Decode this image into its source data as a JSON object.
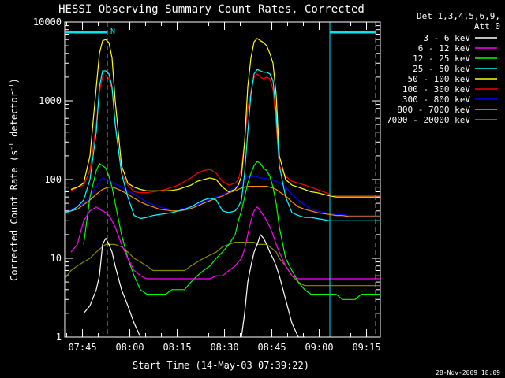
{
  "chart_data": {
    "type": "line",
    "title": "HESSI Observing Summary Count Rates, Corrected",
    "xlabel": "Start Time (14-May-03 07:39:22)",
    "ylabel_main": "Corrected Count Rate (s",
    "ylabel_sup1": "-1",
    "ylabel_mid": " detector",
    "ylabel_sup2": "-1",
    "ylabel_end": ")",
    "yscale": "log",
    "ylim": [
      1,
      10000
    ],
    "xlim_minutes": [
      0,
      100
    ],
    "x_ticks": [
      {
        "minute": 5.63,
        "label": "07:45"
      },
      {
        "minute": 20.63,
        "label": "08:00"
      },
      {
        "minute": 35.63,
        "label": "08:15"
      },
      {
        "minute": 50.63,
        "label": "08:30"
      },
      {
        "minute": 65.63,
        "label": "08:45"
      },
      {
        "minute": 80.63,
        "label": "09:00"
      },
      {
        "minute": 95.63,
        "label": "09:15"
      }
    ],
    "y_ticks": [
      {
        "value": 1,
        "label": "1"
      },
      {
        "value": 10,
        "label": "10"
      },
      {
        "value": 100,
        "label": "100"
      },
      {
        "value": 1000,
        "label": "1000"
      },
      {
        "value": 10000,
        "label": "10000"
      }
    ],
    "legend_header_1": "Det 1,3,4,5,6,9,",
    "legend_header_2": "Att 0",
    "legend_position": "top-right",
    "annotations": {
      "night_marker": "N",
      "night_bar_color": "#00e5ee",
      "night_bars": [
        [
          0,
          13.5
        ],
        [
          84,
          98.5
        ]
      ],
      "vertical_lines_dashed": [
        13.5,
        98.5
      ],
      "vertical_lines_solid": [
        0.3,
        84
      ]
    },
    "footer_timestamp": "28-Nov-2009 18:09",
    "x_minutes": [
      0,
      2,
      4,
      6,
      8,
      10,
      11,
      12,
      13,
      14,
      15,
      16,
      18,
      20,
      22,
      24,
      26,
      28,
      30,
      32,
      34,
      36,
      38,
      40,
      42,
      44,
      46,
      48,
      50,
      52,
      54,
      55,
      56,
      57,
      58,
      59,
      60,
      61,
      62,
      63,
      64,
      65,
      66,
      67,
      68,
      70,
      72,
      74,
      76,
      78,
      80,
      82,
      84,
      86,
      88,
      90,
      92,
      94,
      96,
      98,
      100
    ],
    "series": [
      {
        "name": "3 - 6 keV",
        "color": "#ffffff",
        "values": [
          null,
          null,
          null,
          2,
          2.5,
          4,
          6,
          15,
          18,
          15,
          12,
          8,
          4,
          2.5,
          1.5,
          1,
          null,
          null,
          null,
          null,
          null,
          null,
          null,
          null,
          null,
          null,
          null,
          null,
          null,
          null,
          null,
          null,
          1,
          2,
          5,
          8,
          12,
          15,
          20,
          18,
          15,
          12,
          10,
          8,
          6,
          3,
          1.5,
          1,
          1,
          null,
          null,
          null,
          null,
          null,
          null,
          null,
          null,
          null,
          null,
          null,
          null
        ]
      },
      {
        "name": "6 - 12 keV",
        "color": "#ff00ff",
        "values": [
          null,
          12,
          15,
          30,
          40,
          45,
          42,
          40,
          38,
          35,
          30,
          25,
          15,
          10,
          7,
          6,
          5.5,
          5.5,
          5.5,
          5.5,
          5.5,
          5.5,
          5.5,
          5.5,
          5.5,
          5.5,
          5.5,
          6,
          6,
          7,
          8,
          9,
          10,
          13,
          20,
          30,
          40,
          45,
          40,
          35,
          30,
          25,
          20,
          15,
          12,
          8,
          6,
          5.5,
          5.5,
          5.5,
          5.5,
          5.5,
          5.5,
          5.5,
          5.5,
          5.5,
          5.5,
          5.5,
          5.5,
          5.5,
          5.5
        ]
      },
      {
        "name": "12 - 25 keV",
        "color": "#00ff00",
        "values": [
          null,
          null,
          null,
          15,
          60,
          130,
          160,
          150,
          140,
          110,
          80,
          50,
          20,
          10,
          6,
          4,
          3.5,
          3.5,
          3.5,
          3.5,
          4,
          4,
          4,
          5,
          6,
          7,
          8,
          10,
          12,
          15,
          20,
          30,
          40,
          60,
          90,
          120,
          150,
          170,
          160,
          140,
          130,
          110,
          80,
          50,
          25,
          10,
          7,
          5,
          4,
          3.5,
          3.5,
          3.5,
          3.5,
          3.5,
          3,
          3,
          3,
          3.5,
          3.5,
          3.5,
          3.5
        ]
      },
      {
        "name": "25 - 50 keV",
        "color": "#00ffff",
        "values": [
          38,
          40,
          45,
          55,
          100,
          400,
          1500,
          2400,
          2400,
          2200,
          1500,
          500,
          120,
          60,
          35,
          32,
          33,
          35,
          36,
          37,
          38,
          40,
          42,
          45,
          50,
          55,
          58,
          55,
          40,
          38,
          40,
          45,
          55,
          120,
          400,
          1200,
          2200,
          2500,
          2400,
          2300,
          2300,
          2200,
          1800,
          700,
          150,
          60,
          38,
          35,
          33,
          33,
          32,
          31,
          30,
          30,
          30,
          30,
          30,
          30,
          30,
          30,
          30
        ]
      },
      {
        "name": "50 - 100 keV",
        "color": "#ffff00",
        "values": [
          null,
          75,
          80,
          90,
          200,
          1500,
          4000,
          5800,
          6000,
          5500,
          3500,
          1000,
          150,
          90,
          80,
          75,
          72,
          72,
          72,
          72,
          73,
          75,
          80,
          85,
          95,
          100,
          105,
          100,
          80,
          70,
          75,
          85,
          110,
          300,
          1500,
          3500,
          5600,
          6200,
          5800,
          5500,
          5000,
          4000,
          3000,
          1200,
          200,
          100,
          85,
          80,
          75,
          70,
          68,
          65,
          62,
          60,
          60,
          60,
          60,
          60,
          60,
          60,
          60
        ]
      },
      {
        "name": "100 - 300 keV",
        "color": "#ff0000",
        "values": [
          70,
          72,
          80,
          85,
          130,
          500,
          1300,
          2000,
          2100,
          1900,
          1400,
          500,
          120,
          85,
          70,
          68,
          68,
          70,
          72,
          75,
          80,
          85,
          95,
          105,
          120,
          130,
          135,
          120,
          95,
          85,
          90,
          100,
          140,
          300,
          800,
          1300,
          2000,
          2200,
          2000,
          1900,
          2000,
          1900,
          1400,
          500,
          150,
          110,
          95,
          90,
          85,
          80,
          75,
          70,
          65,
          62,
          62,
          62,
          62,
          62,
          62,
          62,
          62
        ]
      },
      {
        "name": "300 - 800 keV",
        "color": "#0000ff",
        "values": [
          40,
          42,
          45,
          50,
          60,
          80,
          95,
          105,
          100,
          95,
          92,
          88,
          80,
          72,
          65,
          58,
          52,
          48,
          45,
          43,
          42,
          42,
          43,
          45,
          48,
          52,
          56,
          60,
          65,
          72,
          80,
          85,
          90,
          100,
          108,
          110,
          110,
          108,
          105,
          104,
          102,
          100,
          98,
          95,
          90,
          80,
          65,
          55,
          48,
          42,
          40,
          38,
          37,
          36,
          36,
          35,
          35,
          35,
          35,
          35,
          35
        ]
      },
      {
        "name": "800 - 7000 keV",
        "color": "#ff8c00",
        "values": [
          38,
          40,
          42,
          48,
          55,
          65,
          70,
          75,
          78,
          80,
          80,
          78,
          72,
          65,
          58,
          52,
          48,
          45,
          42,
          41,
          40,
          40,
          41,
          43,
          46,
          50,
          54,
          58,
          62,
          68,
          72,
          75,
          78,
          80,
          82,
          82,
          82,
          82,
          82,
          82,
          82,
          80,
          78,
          75,
          70,
          62,
          52,
          45,
          42,
          40,
          38,
          37,
          36,
          35,
          35,
          34,
          34,
          34,
          34,
          34,
          34
        ]
      },
      {
        "name": "7000 - 20000 keV",
        "color": "#8b8b00",
        "values": [
          5.5,
          7,
          8,
          9,
          10,
          12,
          13,
          14,
          15,
          15,
          15,
          15,
          14,
          12,
          10,
          9,
          8,
          7,
          7,
          7,
          7,
          7,
          7,
          8,
          9,
          10,
          11,
          12,
          14,
          15,
          16,
          16,
          16,
          16,
          16,
          16,
          16,
          15,
          15,
          15,
          15,
          14,
          13,
          12,
          10,
          8,
          6,
          5,
          4.5,
          4.5,
          4.5,
          4.5,
          4.5,
          4.5,
          4.5,
          4.5,
          4.5,
          4.5,
          4.5,
          4.5,
          4.5
        ]
      }
    ]
  }
}
